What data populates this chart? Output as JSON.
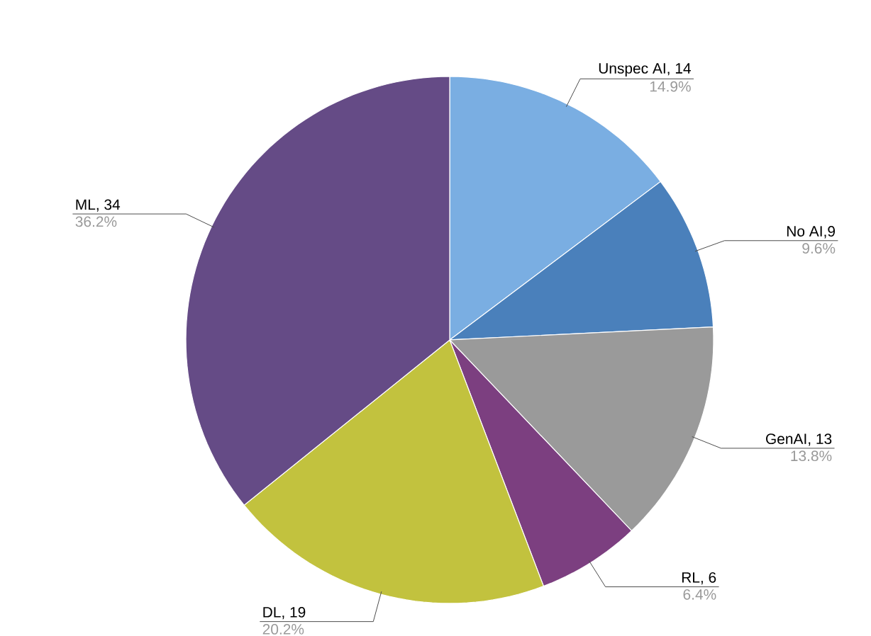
{
  "chart_data": {
    "type": "pie",
    "categories": [
      "Unspec AI, 14",
      "No AI,9",
      "GenAI, 13",
      "RL, 6",
      "DL, 19",
      "ML, 34"
    ],
    "values": [
      14,
      9,
      13,
      6,
      19,
      34
    ],
    "annotations": [
      "14.9%",
      "9.6%",
      "13.8%",
      "6.4%",
      "20.2%",
      "36.2%"
    ],
    "colors": [
      "#7aaee2",
      "#4a80bb",
      "#9a9a9a",
      "#7c3f80",
      "#c2c23e",
      "#654b86"
    ]
  }
}
